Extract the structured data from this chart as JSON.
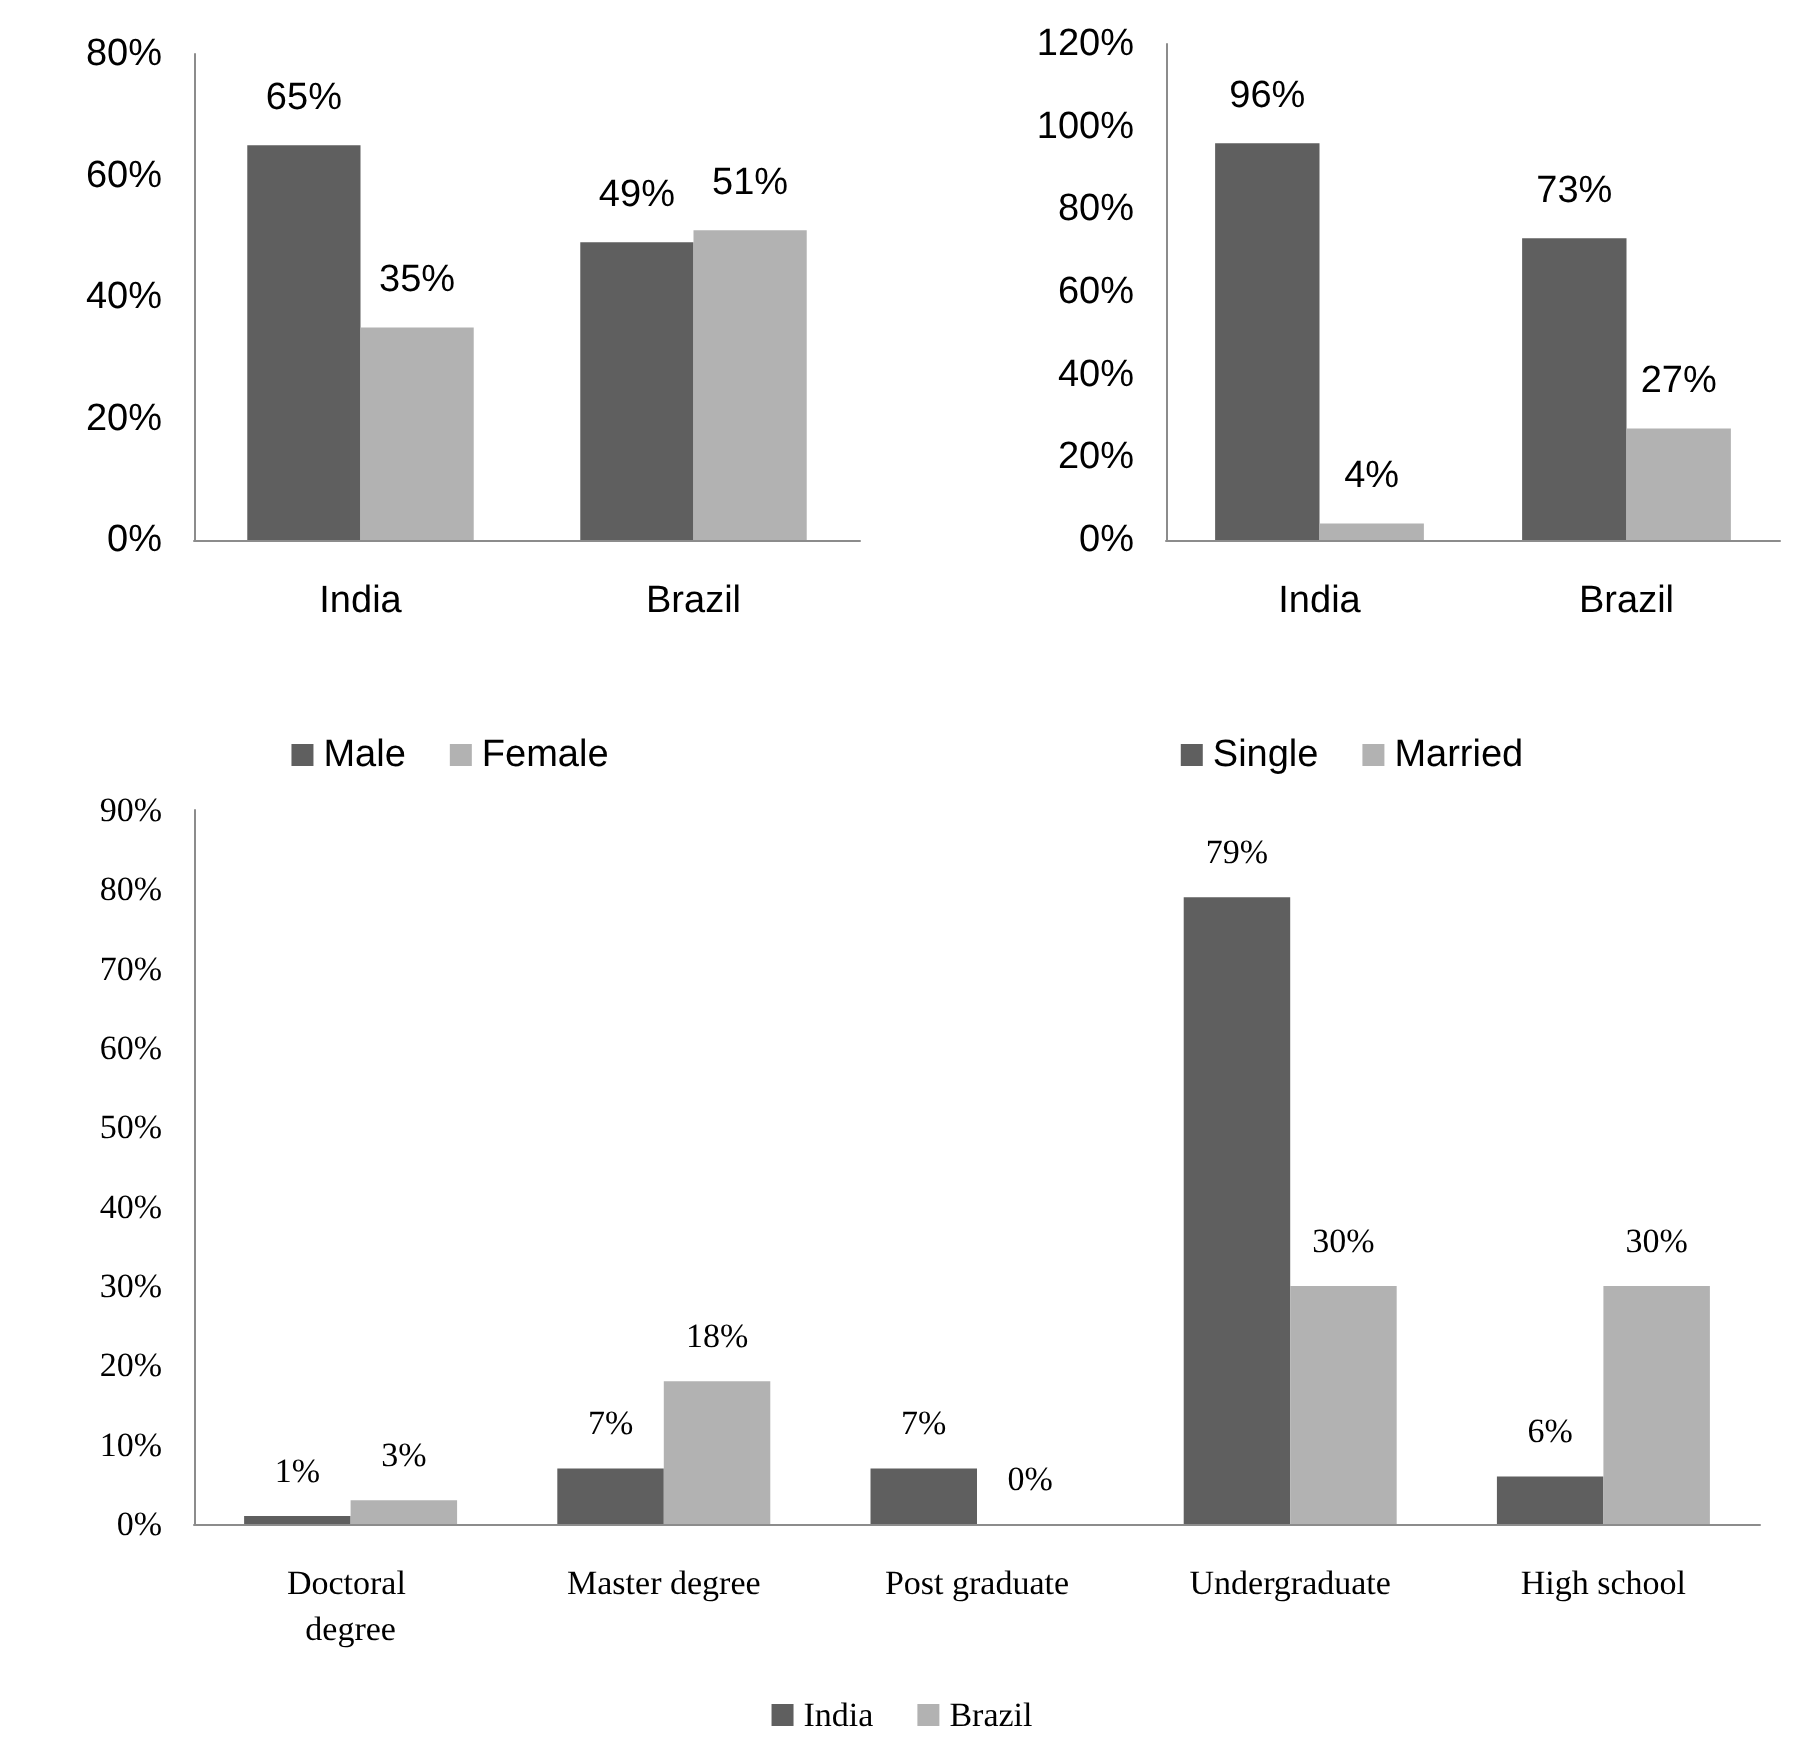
{
  "chart_data": [
    {
      "type": "bar",
      "categories": [
        "India",
        "Brazil"
      ],
      "series": [
        {
          "name": "Male",
          "color": "#5f5f5f",
          "values": [
            65,
            49
          ]
        },
        {
          "name": "Female",
          "color": "#b2b2b2",
          "values": [
            35,
            51
          ]
        }
      ],
      "ylim": [
        0,
        80
      ],
      "yticks": [
        {
          "value": 0,
          "label": "0%"
        },
        {
          "value": 20,
          "label": "20%"
        },
        {
          "value": 40,
          "label": "40%"
        },
        {
          "value": 60,
          "label": "60%"
        },
        {
          "value": 80,
          "label": "80%"
        }
      ],
      "value_labels": [
        [
          "65%",
          "49%"
        ],
        [
          "35%",
          "51%"
        ]
      ],
      "legend": "bottom",
      "grid": false
    },
    {
      "type": "bar",
      "categories": [
        "India",
        "Brazil"
      ],
      "series": [
        {
          "name": "Single",
          "color": "#5f5f5f",
          "values": [
            96,
            73
          ]
        },
        {
          "name": "Married",
          "color": "#b2b2b2",
          "values": [
            4,
            27
          ]
        }
      ],
      "ylim": [
        0,
        120
      ],
      "yticks": [
        {
          "value": 0,
          "label": "0%"
        },
        {
          "value": 20,
          "label": "20%"
        },
        {
          "value": 40,
          "label": "40%"
        },
        {
          "value": 60,
          "label": "60%"
        },
        {
          "value": 80,
          "label": "80%"
        },
        {
          "value": 100,
          "label": "100%"
        },
        {
          "value": 120,
          "label": "120%"
        }
      ],
      "value_labels": [
        [
          "96%",
          "73%"
        ],
        [
          "4%",
          "27%"
        ]
      ],
      "legend": "bottom",
      "grid": false
    },
    {
      "type": "bar",
      "categories": [
        "Doctoral degree",
        "Master degree",
        "Post graduate",
        "Undergraduate",
        "High school"
      ],
      "series": [
        {
          "name": "India",
          "color": "#5f5f5f",
          "values": [
            1,
            7,
            7,
            79,
            6
          ]
        },
        {
          "name": "Brazil",
          "color": "#b2b2b2",
          "values": [
            3,
            18,
            0,
            30,
            30
          ]
        }
      ],
      "ylim": [
        0,
        90
      ],
      "yticks": [
        {
          "value": 0,
          "label": "0%"
        },
        {
          "value": 10,
          "label": "10%"
        },
        {
          "value": 20,
          "label": "20%"
        },
        {
          "value": 30,
          "label": "30%"
        },
        {
          "value": 40,
          "label": "40%"
        },
        {
          "value": 50,
          "label": "50%"
        },
        {
          "value": 60,
          "label": "60%"
        },
        {
          "value": 70,
          "label": "70%"
        },
        {
          "value": 80,
          "label": "80%"
        },
        {
          "value": 90,
          "label": "90%"
        }
      ],
      "value_labels": [
        [
          "1%",
          "7%",
          "7%",
          "79%",
          "6%"
        ],
        [
          "3%",
          "18%",
          "0%",
          "30%",
          "30%"
        ]
      ],
      "legend": "bottom",
      "grid": false
    }
  ]
}
